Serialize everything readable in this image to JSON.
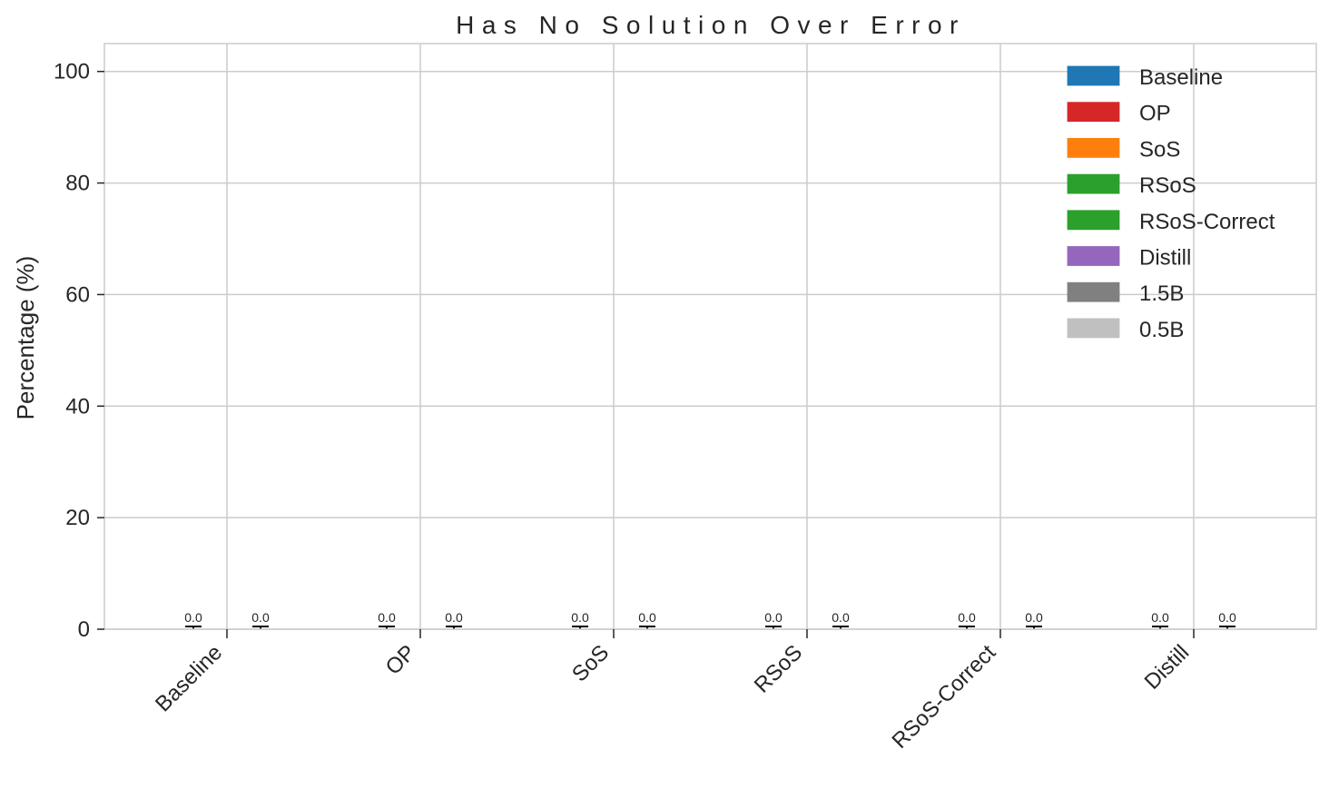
{
  "chart_data": {
    "type": "bar",
    "title": "Has No Solution Over Error",
    "xlabel": "",
    "ylabel": "Percentage (%)",
    "ylim": [
      0,
      105
    ],
    "yticks": [
      0,
      20,
      40,
      60,
      80,
      100
    ],
    "grid": true,
    "legend_position": "top-right",
    "categories": [
      "Baseline",
      "OP",
      "SoS",
      "RSoS",
      "RSoS-Correct",
      "Distill"
    ],
    "series": [
      {
        "name": "1.5B",
        "values": [
          0.0,
          0.0,
          0.0,
          0.0,
          0.0,
          0.0
        ],
        "labels": [
          "0.0",
          "0.0",
          "0.0",
          "0.0",
          "0.0",
          "0.0"
        ]
      },
      {
        "name": "0.5B",
        "values": [
          0.0,
          0.0,
          0.0,
          0.0,
          0.0,
          0.0
        ],
        "labels": [
          "0.0",
          "0.0",
          "0.0",
          "0.0",
          "0.0",
          "0.0"
        ]
      }
    ],
    "legend": [
      {
        "label": "Baseline",
        "color": "#1f77b4"
      },
      {
        "label": "OP",
        "color": "#d62728"
      },
      {
        "label": "SoS",
        "color": "#ff7f0e"
      },
      {
        "label": "RSoS",
        "color": "#2ca02c"
      },
      {
        "label": "RSoS-Correct",
        "color": "#2ca02c"
      },
      {
        "label": "Distill",
        "color": "#9467bd"
      },
      {
        "label": "1.5B",
        "color": "#808080"
      },
      {
        "label": "0.5B",
        "color": "#c0c0c0"
      }
    ]
  }
}
